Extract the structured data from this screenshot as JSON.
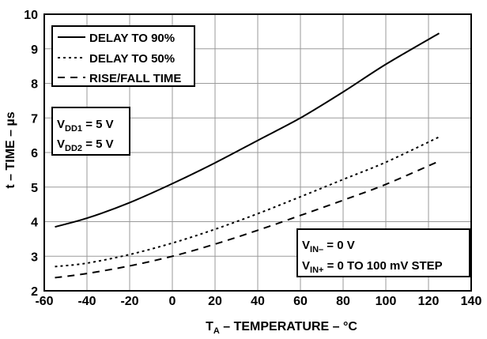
{
  "chart_data": {
    "type": "line",
    "title": "",
    "xlabel": {
      "main": "T",
      "sub": "A",
      "rest": " – TEMPERATURE – °C"
    },
    "ylabel": "t – TIME – µs",
    "xlim": [
      -60,
      140
    ],
    "ylim": [
      2,
      10
    ],
    "xticks": [
      -60,
      -40,
      -20,
      0,
      20,
      40,
      60,
      80,
      100,
      120,
      140
    ],
    "yticks": [
      2,
      3,
      4,
      5,
      6,
      7,
      8,
      9,
      10
    ],
    "grid": true,
    "legend_position": "top-left",
    "series": [
      {
        "name": "DELAY TO 90%",
        "style": "solid",
        "x": [
          -55,
          -40,
          -20,
          0,
          20,
          40,
          60,
          80,
          100,
          125
        ],
        "y": [
          3.85,
          4.1,
          4.55,
          5.1,
          5.7,
          6.35,
          7.0,
          7.75,
          8.55,
          9.45
        ]
      },
      {
        "name": "DELAY TO 50%",
        "style": "dotted",
        "x": [
          -55,
          -40,
          -20,
          0,
          20,
          40,
          60,
          80,
          100,
          125
        ],
        "y": [
          2.7,
          2.8,
          3.05,
          3.38,
          3.78,
          4.23,
          4.72,
          5.22,
          5.72,
          6.45
        ]
      },
      {
        "name": "RISE/FALL TIME",
        "style": "dashed",
        "x": [
          -55,
          -40,
          -20,
          0,
          20,
          40,
          60,
          80,
          100,
          125
        ],
        "y": [
          2.38,
          2.5,
          2.72,
          3.0,
          3.35,
          3.75,
          4.18,
          4.62,
          5.08,
          5.75
        ]
      }
    ],
    "annotations": {
      "supply_box": [
        {
          "main": "V",
          "sub": "DD1",
          "rest": " = 5 V"
        },
        {
          "main": "V",
          "sub": "DD2",
          "rest": " = 5 V"
        }
      ],
      "input_box": [
        {
          "main": "V",
          "sub": "IN–",
          "rest": " = 0 V"
        },
        {
          "main": "V",
          "sub": "IN+",
          "rest": " = 0 TO 100 mV STEP"
        }
      ]
    },
    "colors": {
      "line": "#000000",
      "grid": "#9a9a9a",
      "frame": "#000000"
    }
  }
}
